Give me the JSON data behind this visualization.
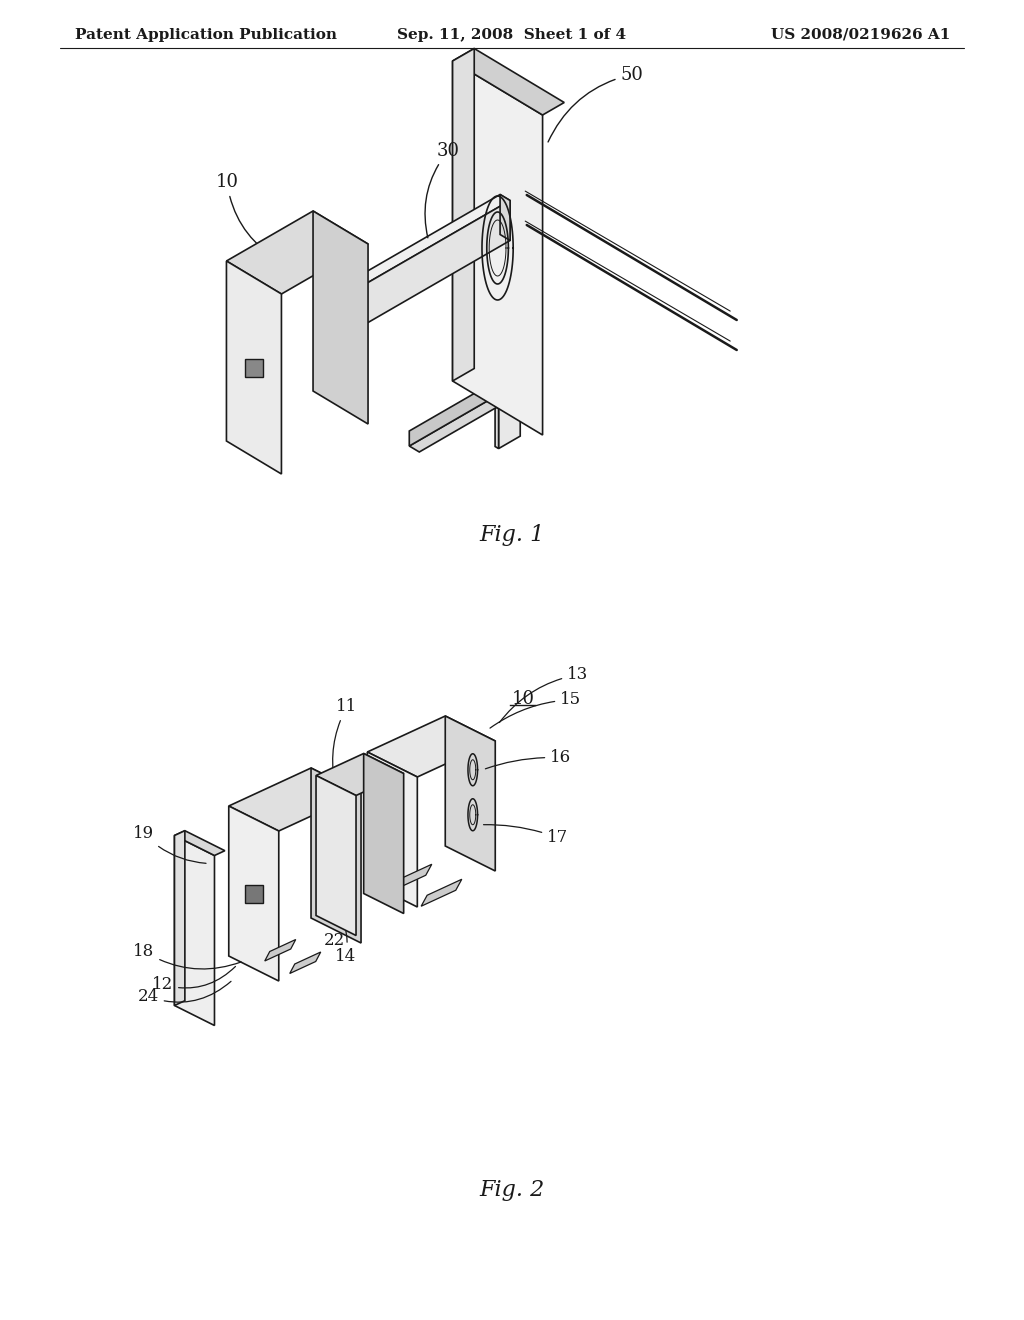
{
  "background_color": "#ffffff",
  "header_left": "Patent Application Publication",
  "header_center": "Sep. 11, 2008  Sheet 1 of 4",
  "header_right": "US 2008/0219626 A1",
  "header_fontsize": 11,
  "fig1_caption": "Fig. 1",
  "fig2_caption": "Fig. 2",
  "caption_fontsize": 16,
  "line_color": "#1a1a1a",
  "label_fontsize": 12
}
